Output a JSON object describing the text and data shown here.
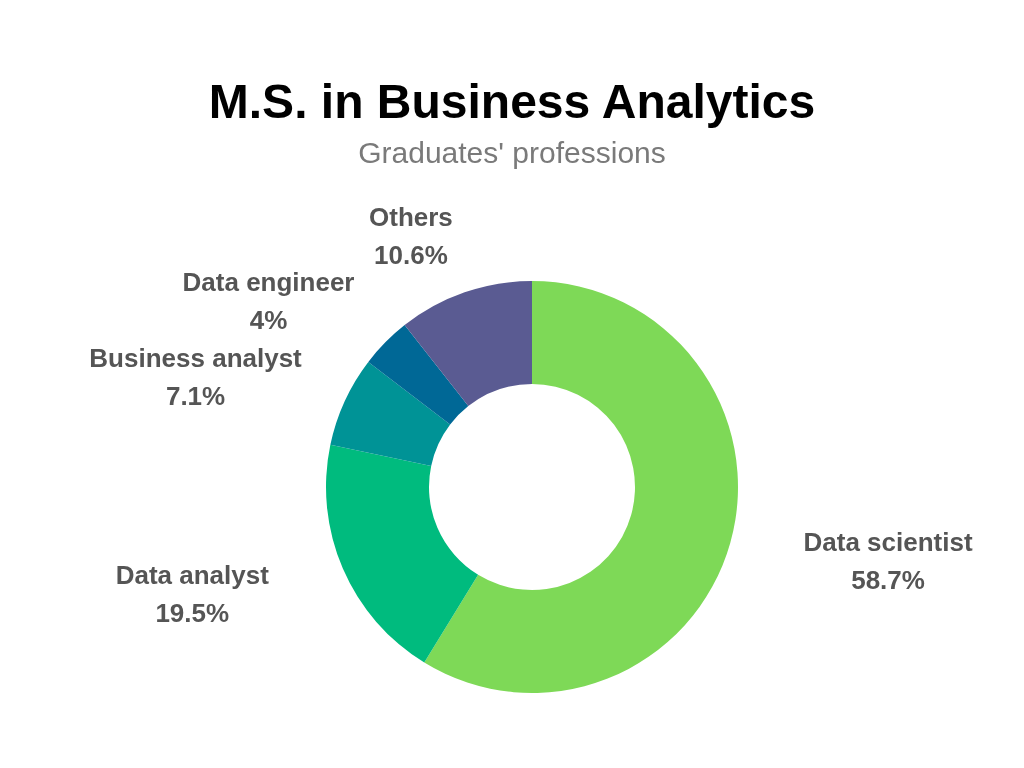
{
  "chart_data": {
    "type": "donut",
    "title": "M.S. in Business Analytics",
    "subtitle": "Graduates' professions",
    "categories": [
      "Data scientist",
      "Data analyst",
      "Business analyst",
      "Data engineer",
      "Others"
    ],
    "values": [
      58.7,
      19.5,
      7.1,
      4,
      10.6
    ],
    "colors": [
      "#7ed957",
      "#00bb7e",
      "#009396",
      "#006896",
      "#5a5b92"
    ],
    "value_labels": [
      "58.7%",
      "19.5%",
      "7.1%",
      "4%",
      "10.6%"
    ]
  }
}
